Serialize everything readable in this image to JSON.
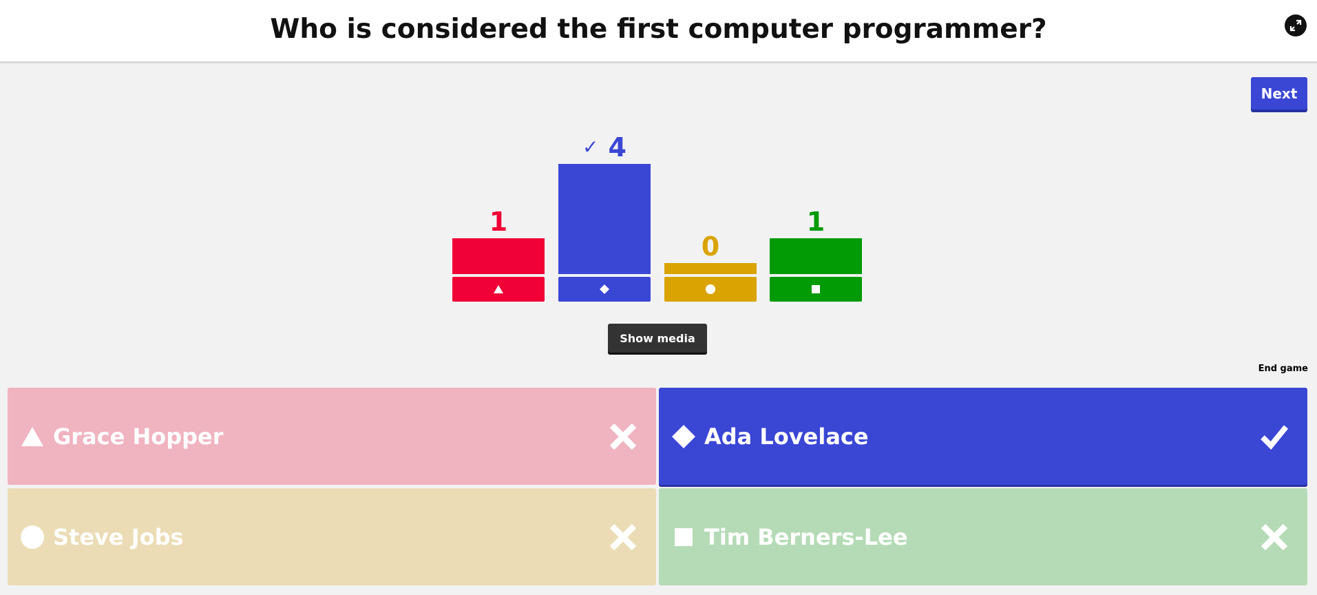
{
  "question": "Who is considered the first computer programmer?",
  "buttons": {
    "next": "Next",
    "show_media": "Show media",
    "end_game": "End game"
  },
  "chart_data": {
    "type": "bar",
    "categories": [
      "triangle",
      "diamond",
      "circle",
      "square"
    ],
    "values": [
      1,
      4,
      0,
      1
    ],
    "colors": [
      "#f00136",
      "#3a46d4",
      "#d9a402",
      "#029a05"
    ],
    "correct": [
      false,
      true,
      false,
      false
    ]
  },
  "answers": [
    {
      "label": "Grace Hopper",
      "shape": "triangle",
      "correct": false,
      "color": "#f0b3c0"
    },
    {
      "label": "Ada Lovelace",
      "shape": "diamond",
      "correct": true,
      "color": "#3a46d4"
    },
    {
      "label": "Steve Jobs",
      "shape": "circle",
      "correct": false,
      "color": "#ebdcb5"
    },
    {
      "label": "Tim Berners-Lee",
      "shape": "square",
      "correct": false,
      "color": "#b5dbb6"
    }
  ]
}
